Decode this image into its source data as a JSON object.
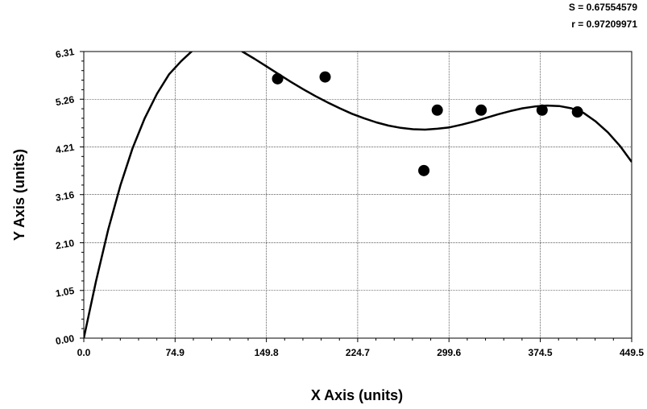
{
  "chart_data": {
    "type": "scatter",
    "title": "",
    "xlabel": "X Axis (units)",
    "ylabel": "Y Axis (units)",
    "xlim": [
      0,
      449.5
    ],
    "ylim": [
      0,
      6.31
    ],
    "x_ticks": [
      0,
      74.9,
      149.8,
      224.7,
      299.6,
      374.5,
      449.5
    ],
    "x_tick_labels": [
      "0.0",
      "74.9",
      "149.8",
      "224.7",
      "299.6",
      "374.5",
      "449.5"
    ],
    "y_ticks": [
      0,
      1.05,
      2.1,
      3.16,
      4.21,
      5.26,
      6.31
    ],
    "y_tick_labels": [
      "0.00",
      "1.05",
      "2.10",
      "3.16",
      "4.21",
      "5.26",
      "6.31"
    ],
    "grid": true,
    "stats": {
      "s_label": "S = 0.67554579",
      "r_label": "r = 0.97209971"
    },
    "series": [
      {
        "kind": "points",
        "x": [
          159,
          198,
          279,
          290,
          326,
          376,
          405
        ],
        "y": [
          5.71,
          5.75,
          3.69,
          5.02,
          5.02,
          5.02,
          4.98
        ]
      },
      {
        "kind": "fit-curve",
        "x": [
          0,
          10,
          20,
          30,
          40,
          50,
          60,
          70,
          80,
          90,
          100,
          110,
          120,
          130,
          140,
          150,
          160,
          170,
          180,
          190,
          200,
          210,
          220,
          230,
          240,
          250,
          260,
          270,
          280,
          290,
          300,
          310,
          320,
          330,
          340,
          350,
          360,
          370,
          380,
          390,
          400,
          410,
          420,
          430,
          440,
          449.5
        ],
        "y": [
          0.0,
          1.25,
          2.39,
          3.36,
          4.18,
          4.84,
          5.38,
          5.81,
          6.1,
          6.35,
          6.55,
          6.7,
          6.76,
          6.31,
          6.15,
          5.98,
          5.81,
          5.64,
          5.48,
          5.33,
          5.19,
          5.06,
          4.94,
          4.84,
          4.75,
          4.68,
          4.63,
          4.6,
          4.59,
          4.61,
          4.64,
          4.7,
          4.77,
          4.85,
          4.93,
          5.0,
          5.06,
          5.1,
          5.12,
          5.11,
          5.06,
          4.96,
          4.77,
          4.53,
          4.23,
          3.88
        ]
      }
    ]
  }
}
